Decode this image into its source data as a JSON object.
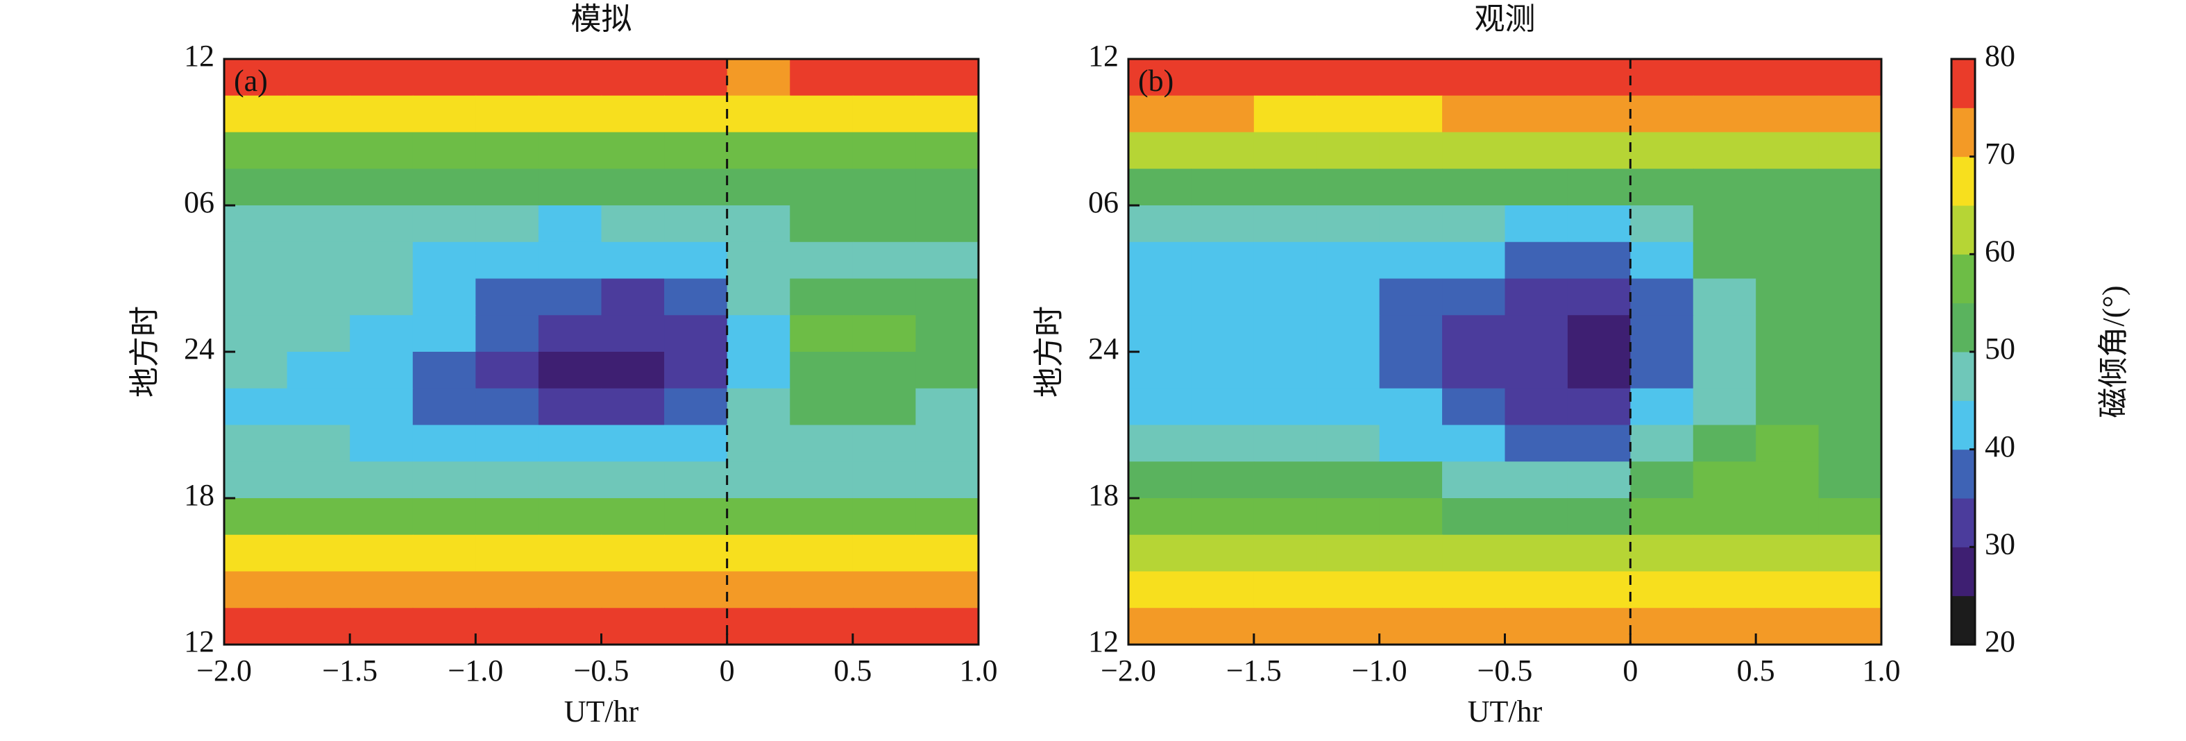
{
  "chart_data": [
    {
      "type": "heatmap",
      "title": "模拟",
      "panel_label": "(a)",
      "x_label": "UT/hr",
      "y_label": "地方时",
      "xlim": [
        -2,
        1
      ],
      "xticks": [
        {
          "value": -2,
          "label": "−2.0"
        },
        {
          "value": -1.5,
          "label": "−1.5"
        },
        {
          "value": -1,
          "label": "−1.0"
        },
        {
          "value": -0.5,
          "label": "−0.5"
        },
        0,
        0.5,
        {
          "value": 1,
          "label": "1.0"
        }
      ],
      "ylim": [
        12,
        36
      ],
      "yticks": [
        12,
        18,
        24,
        {
          "value": 30,
          "label": "06"
        },
        {
          "value": 36,
          "label": "12"
        }
      ],
      "vline": 0,
      "x": [
        -1.875,
        -1.625,
        -1.375,
        -1.125,
        -0.875,
        -0.625,
        -0.375,
        -0.125,
        0.125,
        0.375,
        0.625,
        0.875
      ],
      "y": [
        35.25,
        33.75,
        32.25,
        30.75,
        29.25,
        27.75,
        26.25,
        24.75,
        23.25,
        21.75,
        20.25,
        18.75,
        17.25,
        15.75,
        14.25,
        12.75
      ],
      "z": [
        [
          76,
          76,
          76,
          76,
          76,
          76,
          76,
          76,
          74,
          76,
          76,
          76
        ],
        [
          67,
          67,
          67,
          67,
          67,
          67,
          67,
          67,
          67,
          67,
          67,
          67
        ],
        [
          56,
          56,
          56,
          56,
          56,
          56,
          56,
          56,
          56,
          56,
          56,
          56
        ],
        [
          50,
          51,
          50,
          50,
          51,
          50,
          50,
          52,
          53,
          54,
          54,
          54
        ],
        [
          47,
          48,
          46,
          46,
          46,
          44,
          45,
          47,
          49,
          51,
          52,
          52
        ],
        [
          47,
          47,
          46,
          44,
          42,
          40,
          40,
          44,
          47,
          48,
          48,
          49
        ],
        [
          46,
          46,
          45,
          42,
          38,
          35,
          33,
          36,
          45,
          52,
          52,
          50
        ],
        [
          45,
          45,
          44,
          40,
          35,
          31,
          30,
          32,
          44,
          56,
          58,
          52
        ],
        [
          45,
          44,
          42,
          38,
          33,
          29,
          28,
          33,
          42,
          52,
          54,
          50
        ],
        [
          44,
          42,
          40,
          37,
          35,
          34,
          34,
          38,
          45,
          50,
          50,
          48
        ],
        [
          46,
          45,
          44,
          42,
          41,
          40,
          41,
          43,
          46,
          48,
          48,
          47
        ],
        [
          49,
          49,
          49,
          48,
          48,
          48,
          48,
          48,
          49,
          49,
          49,
          49
        ],
        [
          56,
          56,
          56,
          56,
          56,
          56,
          56,
          56,
          56,
          56,
          56,
          56
        ],
        [
          66,
          66,
          66,
          66,
          66,
          66,
          66,
          66,
          66,
          66,
          66,
          66
        ],
        [
          72,
          72,
          72,
          72,
          72,
          72,
          72,
          72,
          72,
          72,
          72,
          72
        ],
        [
          76,
          76,
          76,
          76,
          76,
          76,
          76,
          76,
          76,
          76,
          76,
          76
        ]
      ]
    },
    {
      "type": "heatmap",
      "title": "观测",
      "panel_label": "(b)",
      "x_label": "UT/hr",
      "y_label": "地方时",
      "xlim": [
        -2,
        1
      ],
      "xticks": [
        {
          "value": -2,
          "label": "−2.0"
        },
        {
          "value": -1.5,
          "label": "−1.5"
        },
        {
          "value": -1,
          "label": "−1.0"
        },
        {
          "value": -0.5,
          "label": "−0.5"
        },
        0,
        0.5,
        {
          "value": 1,
          "label": "1.0"
        }
      ],
      "ylim": [
        12,
        36
      ],
      "yticks": [
        12,
        18,
        24,
        {
          "value": 30,
          "label": "06"
        },
        {
          "value": 36,
          "label": "12"
        }
      ],
      "vline": 0,
      "x": [
        -1.875,
        -1.625,
        -1.375,
        -1.125,
        -0.875,
        -0.625,
        -0.375,
        -0.125,
        0.125,
        0.375,
        0.625,
        0.875
      ],
      "y": [
        35.25,
        33.75,
        32.25,
        30.75,
        29.25,
        27.75,
        26.25,
        24.75,
        23.25,
        21.75,
        20.25,
        18.75,
        17.25,
        15.75,
        14.25,
        12.75
      ],
      "z": [
        [
          76,
          76,
          76,
          76,
          76,
          76,
          76,
          76,
          76,
          76,
          76,
          76
        ],
        [
          70,
          70,
          69,
          69,
          69,
          70,
          70,
          70,
          70,
          70,
          70,
          70
        ],
        [
          62,
          62,
          62,
          61,
          61,
          62,
          62,
          62,
          62,
          62,
          62,
          62
        ],
        [
          54,
          53,
          52,
          52,
          52,
          52,
          52,
          53,
          54,
          54,
          54,
          54
        ],
        [
          48,
          47,
          47,
          46,
          46,
          45,
          44,
          43,
          46,
          50,
          52,
          52
        ],
        [
          44,
          44,
          44,
          43,
          42,
          40,
          38,
          36,
          42,
          50,
          52,
          52
        ],
        [
          42,
          42,
          42,
          40,
          37,
          35,
          33,
          32,
          38,
          48,
          50,
          50
        ],
        [
          42,
          42,
          41,
          40,
          36,
          33,
          30,
          27,
          36,
          47,
          50,
          50
        ],
        [
          42,
          42,
          42,
          41,
          38,
          34,
          31,
          28,
          37,
          46,
          50,
          50
        ],
        [
          44,
          43,
          42,
          42,
          40,
          37,
          34,
          33,
          40,
          48,
          52,
          51
        ],
        [
          48,
          48,
          47,
          45,
          43,
          40,
          37,
          38,
          46,
          53,
          55,
          52
        ],
        [
          52,
          51,
          51,
          50,
          50,
          48,
          45,
          46,
          52,
          56,
          57,
          54
        ],
        [
          56,
          56,
          55,
          55,
          55,
          54,
          52,
          52,
          55,
          57,
          56,
          56
        ],
        [
          62,
          62,
          62,
          61,
          61,
          60,
          60,
          60,
          60,
          60,
          60,
          60
        ],
        [
          68,
          68,
          67,
          67,
          67,
          66,
          66,
          66,
          66,
          66,
          66,
          66
        ],
        [
          74,
          74,
          74,
          74,
          74,
          74,
          74,
          74,
          74,
          74,
          74,
          74
        ]
      ]
    }
  ],
  "colorbar": {
    "label": "磁倾角/(°)",
    "levels": [
      20,
      25,
      30,
      35,
      40,
      45,
      50,
      55,
      60,
      65,
      70,
      75,
      80
    ],
    "colors": [
      "#1c1c1c",
      "#3e1f72",
      "#4b3c9c",
      "#3e63b5",
      "#4fc4ec",
      "#6fc7b9",
      "#5ab35e",
      "#6dbd46",
      "#b6d535",
      "#f7df1e",
      "#f39a26",
      "#ea3c2a"
    ],
    "ticks": [
      20,
      30,
      40,
      50,
      60,
      70,
      80
    ]
  }
}
